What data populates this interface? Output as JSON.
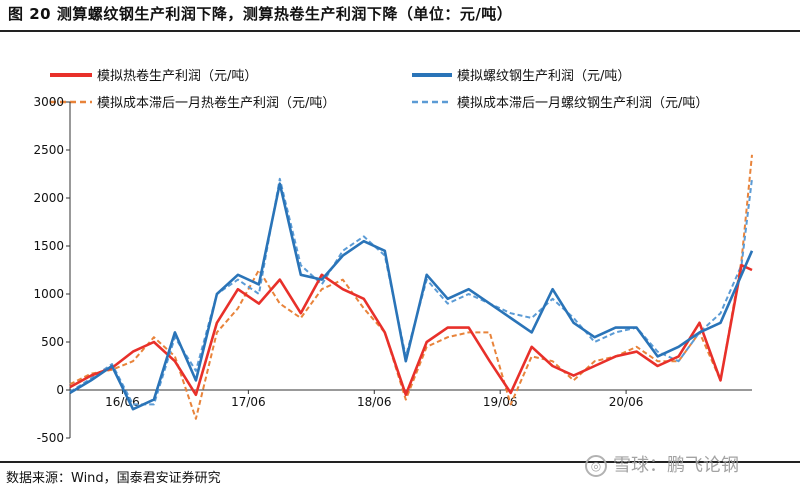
{
  "figure": {
    "title": "图 20 测算螺纹钢生产利润下降，测算热卷生产利润下降（单位：元/吨）",
    "source": "数据来源：Wind，国泰君安证券研究",
    "watermark": "雪球：鹏飞论钢"
  },
  "chart_data": {
    "type": "line",
    "title": "测算螺纹钢生产利润下降，测算热卷生产利润下降（单位：元/吨）",
    "xlabel": "",
    "ylabel": "",
    "ylim": [
      -500,
      3000
    ],
    "yticks": [
      "3000",
      "2500",
      "2000",
      "1500",
      "1000",
      "500",
      "0",
      "-500"
    ],
    "xticks": [
      "16/06",
      "17/06",
      "18/06",
      "19/06",
      "20/06"
    ],
    "x": [
      "2016-01",
      "2016-03",
      "2016-05",
      "2016-07",
      "2016-09",
      "2016-11",
      "2017-01",
      "2017-03",
      "2017-05",
      "2017-07",
      "2017-09",
      "2017-11",
      "2018-01",
      "2018-03",
      "2018-05",
      "2018-07",
      "2018-09",
      "2018-11",
      "2019-01",
      "2019-03",
      "2019-05",
      "2019-07",
      "2019-09",
      "2019-11",
      "2020-01",
      "2020-03",
      "2020-05",
      "2020-07",
      "2020-09",
      "2020-11",
      "2021-01",
      "2021-03",
      "2021-05",
      "2021-06"
    ],
    "grid": false,
    "legend_position": "top",
    "series": [
      {
        "name": "模拟热卷生产利润（元/吨）",
        "color": "#e8302a",
        "dash": "solid",
        "values": [
          30,
          150,
          230,
          400,
          500,
          300,
          -50,
          700,
          1050,
          900,
          1150,
          800,
          1200,
          1050,
          950,
          600,
          -50,
          500,
          650,
          650,
          300,
          -30,
          450,
          250,
          150,
          250,
          350,
          400,
          250,
          350,
          700,
          100,
          1300,
          1250
        ]
      },
      {
        "name": "模拟螺纹钢生产利润（元/吨）",
        "color": "#2a74b8",
        "dash": "solid",
        "values": [
          -30,
          100,
          250,
          -200,
          -100,
          600,
          100,
          1000,
          1200,
          1100,
          2150,
          1200,
          1150,
          1400,
          1550,
          1450,
          300,
          1200,
          950,
          1050,
          900,
          750,
          600,
          1050,
          700,
          550,
          650,
          650,
          350,
          450,
          600,
          700,
          1200,
          1450
        ]
      },
      {
        "name": "模拟成本滞后一月热卷生产利润（元/吨）",
        "color": "#e8833a",
        "dash": "dashed",
        "values": [
          60,
          170,
          210,
          300,
          550,
          350,
          -300,
          600,
          850,
          1250,
          900,
          750,
          1050,
          1150,
          850,
          600,
          -100,
          450,
          550,
          600,
          600,
          -150,
          350,
          300,
          100,
          300,
          350,
          450,
          300,
          300,
          600,
          100,
          1350,
          2450
        ]
      },
      {
        "name": "模拟成本滞后一月螺纹钢生产利润（元/吨）",
        "color": "#5b9bd5",
        "dash": "dashed",
        "values": [
          -20,
          120,
          270,
          -150,
          -150,
          550,
          200,
          1000,
          1150,
          1000,
          2200,
          1300,
          1100,
          1450,
          1600,
          1400,
          350,
          1150,
          900,
          1000,
          900,
          800,
          750,
          950,
          750,
          500,
          600,
          650,
          400,
          300,
          600,
          800,
          1300,
          2200
        ]
      }
    ]
  },
  "legend": {
    "item_0": "模拟热卷生产利润（元/吨）",
    "item_1": "模拟螺纹钢生产利润（元/吨）",
    "item_2": "模拟成本滞后一月热卷生产利润（元/吨）",
    "item_3": "模拟成本滞后一月螺纹钢生产利润（元/吨）"
  }
}
